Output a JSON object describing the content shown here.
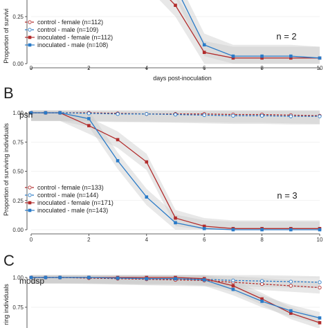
{
  "colors": {
    "female": "#b22c2c",
    "male": "#2a7bc8",
    "ribbon": "#cccccc"
  },
  "legend_entries": [
    {
      "key": "cf",
      "label_A": "control - female (n=112)",
      "label_B": "control - female (n=133)"
    },
    {
      "key": "cm",
      "label_A": "control - male (n=109)",
      "label_B": "control - male (n=144)"
    },
    {
      "key": "if",
      "label_A": "inoculated - female (n=112)",
      "label_B": "inoculated - female (n=171)"
    },
    {
      "key": "im",
      "label_A": "inoculated - male (n=108)",
      "label_B": "inoculated - male (n=143)"
    }
  ],
  "chart_data": [
    {
      "panel": "A",
      "panel_letter": "",
      "type": "line",
      "title": "",
      "annotation": "n = 2",
      "xlabel": "days post-inoculation",
      "ylabel": "Proportion of surviving individuals",
      "ylabel_visible": "Proportion of survivi",
      "xlim": [
        0,
        10
      ],
      "ylim": [
        0,
        1
      ],
      "xticks": [
        "0",
        "2",
        "4",
        "6",
        "8",
        "10"
      ],
      "yticks": [
        "0.00",
        "0.25",
        "0.50"
      ],
      "series": [
        {
          "name": "control - female (n=112)",
          "key": "cf",
          "x": [
            4,
            5,
            6,
            7,
            8,
            9,
            10
          ],
          "y": [
            0.99,
            0.99,
            0.99,
            0.99,
            0.98,
            0.98,
            0.98
          ]
        },
        {
          "name": "control - male (n=109)",
          "key": "cm",
          "x": [
            4,
            5,
            6,
            7,
            8,
            9,
            10
          ],
          "y": [
            0.99,
            0.99,
            0.99,
            0.98,
            0.98,
            0.98,
            0.98
          ]
        },
        {
          "name": "inoculated - female (n=112)",
          "key": "if",
          "x": [
            4,
            5,
            6,
            7,
            8,
            9,
            10
          ],
          "y": [
            0.47,
            0.31,
            0.06,
            0.03,
            0.03,
            0.03,
            0.03
          ]
        },
        {
          "name": "inoculated - male (n=108)",
          "key": "im",
          "x": [
            4,
            5,
            6,
            7,
            8,
            9,
            10
          ],
          "y": [
            0.52,
            0.41,
            0.1,
            0.04,
            0.04,
            0.04,
            0.03
          ]
        }
      ]
    },
    {
      "panel": "B",
      "panel_letter": "B",
      "type": "line",
      "title": "psh",
      "annotation": "n = 3",
      "xlabel": "",
      "ylabel": "Proportion of surviving individuals",
      "xlim": [
        0,
        10
      ],
      "ylim": [
        0,
        1
      ],
      "xticks": [
        "0",
        "2",
        "4",
        "6",
        "8",
        "10"
      ],
      "yticks": [
        "0.00",
        "0.25",
        "0.50",
        "0.75",
        "1.00"
      ],
      "series": [
        {
          "name": "control - female (n=133)",
          "key": "cf",
          "x": [
            0,
            0.5,
            1,
            2,
            3,
            4,
            5,
            6,
            7,
            8,
            9,
            10
          ],
          "y": [
            1,
            1,
            1,
            1,
            0.995,
            0.99,
            0.99,
            0.99,
            0.985,
            0.985,
            0.98,
            0.975
          ]
        },
        {
          "name": "control - male (n=144)",
          "key": "cm",
          "x": [
            0,
            0.5,
            1,
            2,
            3,
            4,
            5,
            6,
            7,
            8,
            9,
            10
          ],
          "y": [
            1,
            1,
            1,
            0.995,
            0.99,
            0.99,
            0.985,
            0.98,
            0.975,
            0.975,
            0.97,
            0.97
          ]
        },
        {
          "name": "inoculated - female (n=171)",
          "key": "if",
          "x": [
            0,
            0.5,
            1,
            2,
            3,
            4,
            5,
            6,
            7,
            8,
            9,
            10
          ],
          "y": [
            1,
            1,
            1,
            0.89,
            0.77,
            0.58,
            0.1,
            0.03,
            0.01,
            0.01,
            0.01,
            0.01
          ]
        },
        {
          "name": "inoculated - male (n=143)",
          "key": "im",
          "x": [
            0,
            0.5,
            1,
            2,
            3,
            4,
            5,
            6,
            7,
            8,
            9,
            10
          ],
          "y": [
            1,
            1,
            1,
            0.95,
            0.59,
            0.28,
            0.06,
            0.01,
            0.0,
            0.0,
            0.0,
            0.0
          ]
        }
      ]
    },
    {
      "panel": "C",
      "panel_letter": "C",
      "type": "line",
      "title": "modsp",
      "annotation": "",
      "xlabel": "",
      "ylabel": "Proportion of surviving individuals",
      "ylabel_visible": "ring individuals",
      "xlim": [
        0,
        10
      ],
      "ylim": [
        0,
        1
      ],
      "xticks": [],
      "yticks": [
        "0.75",
        "1.00"
      ],
      "series": [
        {
          "name": "control - female",
          "key": "cf",
          "x": [
            0,
            0.5,
            1,
            2,
            3,
            4,
            5,
            6,
            7,
            8,
            9,
            10
          ],
          "y": [
            1,
            1,
            1,
            0.995,
            0.99,
            0.985,
            0.98,
            0.975,
            0.96,
            0.945,
            0.93,
            0.915
          ]
        },
        {
          "name": "control - male",
          "key": "cm",
          "x": [
            0,
            0.5,
            1,
            2,
            3,
            4,
            5,
            6,
            7,
            8,
            9,
            10
          ],
          "y": [
            1,
            1,
            1,
            1,
            0.995,
            0.99,
            0.99,
            0.985,
            0.975,
            0.97,
            0.965,
            0.96
          ]
        },
        {
          "name": "inoculated - female",
          "key": "if",
          "x": [
            0,
            0.5,
            1,
            2,
            3,
            4,
            5,
            6,
            7,
            8,
            9,
            10
          ],
          "y": [
            1,
            1,
            1,
            1,
            1,
            1,
            1,
            0.99,
            0.93,
            0.82,
            0.7,
            0.62
          ]
        },
        {
          "name": "inoculated - male",
          "key": "im",
          "x": [
            0,
            0.5,
            1,
            2,
            3,
            4,
            5,
            6,
            7,
            8,
            9,
            10
          ],
          "y": [
            1,
            1,
            1,
            1,
            0.995,
            0.99,
            0.99,
            0.98,
            0.9,
            0.8,
            0.72,
            0.66
          ]
        }
      ]
    }
  ]
}
